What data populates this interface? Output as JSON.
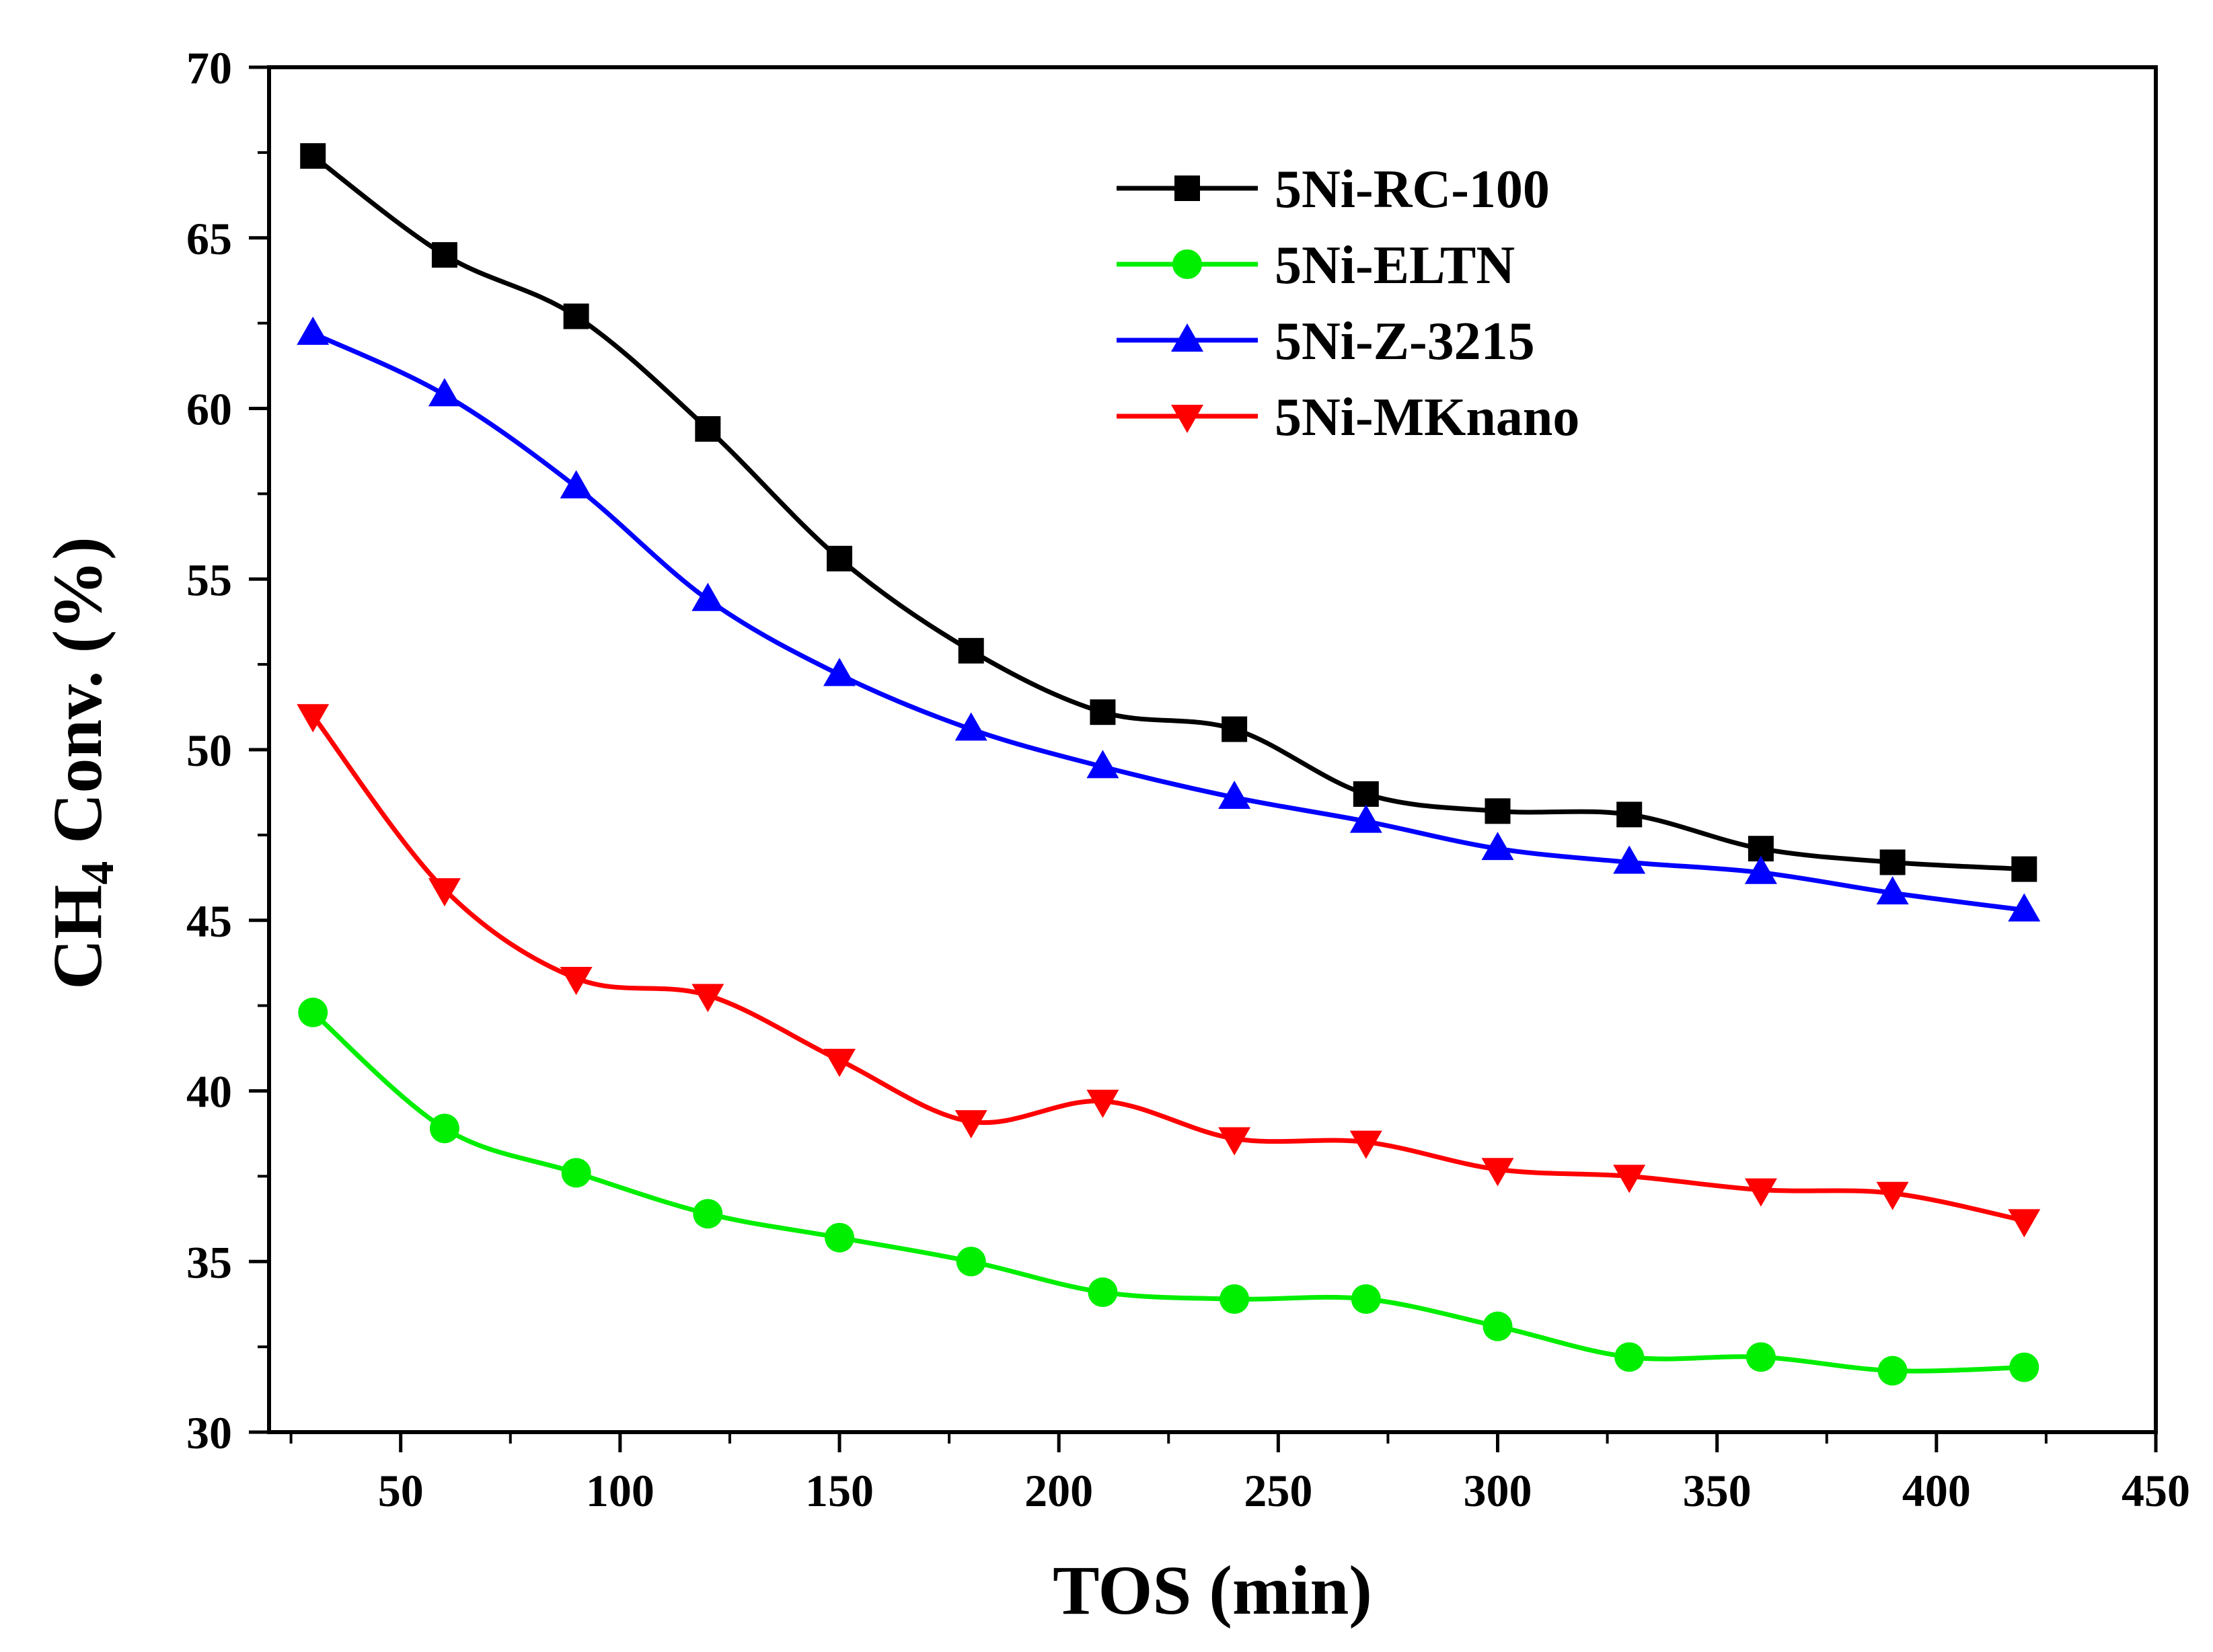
{
  "chart_data": {
    "type": "line",
    "title": "",
    "xlabel": "TOS (min)",
    "ylabel_main": "CH",
    "ylabel_sub": "4",
    "ylabel_rest": " Conv. (%)",
    "xlim": [
      20,
      450
    ],
    "ylim": [
      30,
      70
    ],
    "xticks": [
      50,
      100,
      150,
      200,
      250,
      300,
      350,
      400,
      450
    ],
    "xtick_labels": [
      "50",
      "100",
      "150",
      "200",
      "250",
      "300",
      "350",
      "400",
      "450"
    ],
    "yticks": [
      30,
      35,
      40,
      45,
      50,
      55,
      60,
      65,
      70
    ],
    "ytick_labels": [
      "30",
      "35",
      "40",
      "45",
      "50",
      "55",
      "60",
      "65",
      "70"
    ],
    "grid": false,
    "legend_position": "top-right",
    "x": [
      30,
      60,
      90,
      120,
      150,
      180,
      210,
      240,
      270,
      300,
      330,
      360,
      390,
      420
    ],
    "series": [
      {
        "name": "5Ni-RC-100",
        "color": "#000000",
        "marker": "square",
        "values": [
          67.4,
          64.5,
          62.7,
          59.4,
          55.6,
          52.9,
          51.1,
          50.6,
          48.7,
          48.2,
          48.1,
          47.1,
          46.7,
          46.5
        ]
      },
      {
        "name": "5Ni-ELTN",
        "color": "#00ee00",
        "marker": "circle",
        "values": [
          42.3,
          38.9,
          37.6,
          36.4,
          35.7,
          35.0,
          34.1,
          33.9,
          33.9,
          33.1,
          32.2,
          32.2,
          31.8,
          31.9
        ]
      },
      {
        "name": "5Ni-Z-3215",
        "color": "#0000ff",
        "marker": "triangle-up",
        "values": [
          62.2,
          60.4,
          57.7,
          54.4,
          52.2,
          50.6,
          49.5,
          48.6,
          47.9,
          47.1,
          46.7,
          46.4,
          45.8,
          45.3
        ]
      },
      {
        "name": "5Ni-MKnano",
        "color": "#ff0000",
        "marker": "triangle-down",
        "values": [
          51.0,
          45.9,
          43.3,
          42.8,
          40.9,
          39.1,
          39.7,
          38.6,
          38.5,
          37.7,
          37.5,
          37.1,
          37.0,
          36.2
        ]
      }
    ]
  }
}
